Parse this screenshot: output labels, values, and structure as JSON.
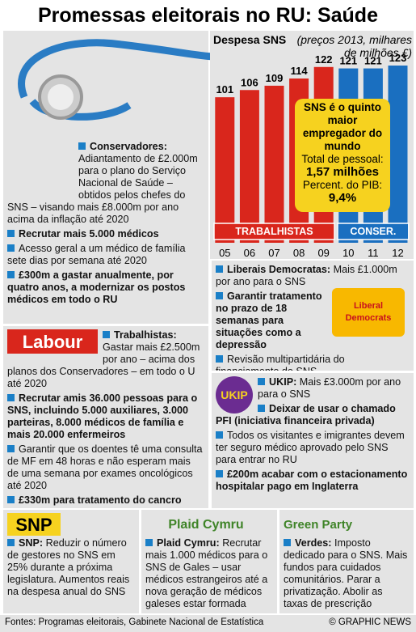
{
  "title": "Promessas eleitorais no RU: Saúde",
  "chart_data": {
    "type": "bar",
    "title": "Despesa SNS",
    "subtitle": "(preços 2013, milhares de milhões £)",
    "categories": [
      "05",
      "06",
      "07",
      "08",
      "09",
      "10",
      "11",
      "12"
    ],
    "series": [
      {
        "name": "TRABALHISTAS",
        "color": "#d9261c",
        "values": [
          101,
          106,
          109,
          114,
          122,
          null,
          null,
          null
        ]
      },
      {
        "name": "CONSER.",
        "color": "#1a6fc0",
        "values": [
          null,
          null,
          null,
          null,
          null,
          121,
          121,
          123
        ]
      }
    ],
    "annotation": {
      "headline": "SNS é o quinto maior empregador do mundo",
      "staff_label": "Total de pessoal:",
      "staff_value": "1,57 milhões",
      "gdp_label": "Percent. do PIB:",
      "gdp_value": "9,4%"
    }
  },
  "sections": [
    {
      "heading": "Conservadores:",
      "text": "Adiantamento de £2.000m para o plano do Serviço Nacional de Saúde – obtidos pelos chefes do SNS – visando mais £8.000m por ano acima da inflação até 2020",
      "bullets": [
        {
          "text": "Recrutar mais 5.000 médicos",
          "bold": true
        },
        {
          "text": "Acesso geral a um médico de família sete dias por semana até 2020",
          "bold": false
        },
        {
          "text": "£300m a gastar anualmente, por quatro anos, a modernizar os postos médicos em todo o RU",
          "bold": true
        }
      ]
    },
    {
      "logo": "Liberal Democrats",
      "heading": "Liberais Democratas:",
      "text": "Mais £1.000m por ano para o SNS",
      "bullets": [
        {
          "text": "Garantir tratamento no prazo de 18 semanas para situações como a depressão",
          "bold": true
        },
        {
          "text": "Revisão multipartidária do financiamento do SNS",
          "bold": false
        }
      ]
    },
    {
      "logo": "Labour",
      "heading": "Trabalhistas:",
      "text": "Gastar mais £2.500m por ano – acima dos planos dos Conservadores – em todo o U até 2020",
      "bullets": [
        {
          "text": "Recrutar amis 36.000 pessoas para o SNS, incluindo 5.000 auxiliares, 3.000 parteiras, 8.000 médicos de família e mais 20.000 enfermeiros",
          "bold": true
        },
        {
          "text": "Garantir que os doentes tê uma consulta de MF em 48 horas e não esperam mais de uma semana por exames oncológicos até 2020",
          "bold": false
        },
        {
          "text": "£330m para tratamento do cancro",
          "bold": true
        }
      ]
    },
    {
      "logo": "UKIP",
      "heading": "UKIP:",
      "text": "Mais £3.000m por ano para o SNS",
      "bullets": [
        {
          "text": "Deixar de usar o chamado PFI (iniciativa financeira privada)",
          "bold": true
        },
        {
          "text": "Todos os visitantes e imigrantes devem ter seguro médico aprovado pelo SNS para entrar no RU",
          "bold": false
        },
        {
          "text": "£200m acabar com o estacionamento hospitalar pago em Inglaterra",
          "bold": true
        }
      ]
    },
    {
      "logo": "SNP",
      "heading": "SNP:",
      "text": "Reduzir o número de gestores no SNS em 25% durante a próxima legislatura. Aumentos reais na despesa anual do SNS",
      "bullets": []
    },
    {
      "logo": "Plaid Cymru",
      "heading": "Plaid Cymru:",
      "text": "Recrutar mais 1.000 médicos para o SNS de Gales – usar médicos estrangeiros até a nova geração de médicos galeses estar formada",
      "bullets": []
    },
    {
      "logo": "Green Party",
      "heading": "Verdes:",
      "text": "Imposto dedicado para o SNS. Mais fundos para cuidados comunitários. Parar a privatização. Abolir as taxas de prescrição",
      "bullets": []
    }
  ],
  "footer": {
    "source": "Fontes: Programas eleitorais, Gabinete Nacional de Estatística",
    "credit": "© GRAPHIC NEWS"
  }
}
